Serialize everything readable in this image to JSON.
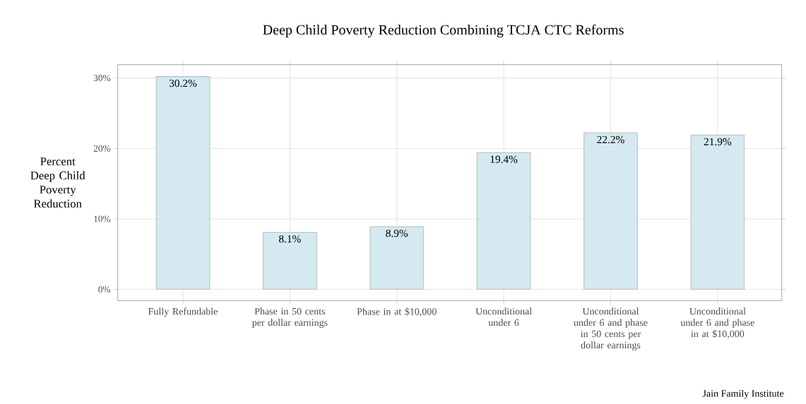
{
  "chart_data": {
    "type": "bar",
    "title": "Deep Child Poverty Reduction Combining TCJA CTC Reforms",
    "ylabel": "Percent Deep Child Poverty Reduction",
    "categories": [
      "Fully Refundable",
      "Phase in 50 cents per dollar earnings",
      "Phase in at $10,000",
      "Unconditional under 6",
      "Unconditional under 6 and phase in 50 cents per dollar earnings",
      "Unconditional under 6 and phase in at $10,000"
    ],
    "values": [
      30.2,
      8.1,
      8.9,
      19.4,
      22.2,
      21.9
    ],
    "value_labels": [
      "30.2%",
      "8.1%",
      "8.9%",
      "19.4%",
      "22.2%",
      "21.9%"
    ],
    "color": "#d4e9f0",
    "ylim": [
      -1.6,
      31.9
    ],
    "yticks": [
      {
        "value": 0,
        "label": "0%"
      },
      {
        "value": 10,
        "label": "10%"
      },
      {
        "value": 20,
        "label": "20%"
      },
      {
        "value": 30,
        "label": "30%"
      }
    ],
    "grid": true,
    "annotations": [
      "Jain Family Institute"
    ]
  }
}
